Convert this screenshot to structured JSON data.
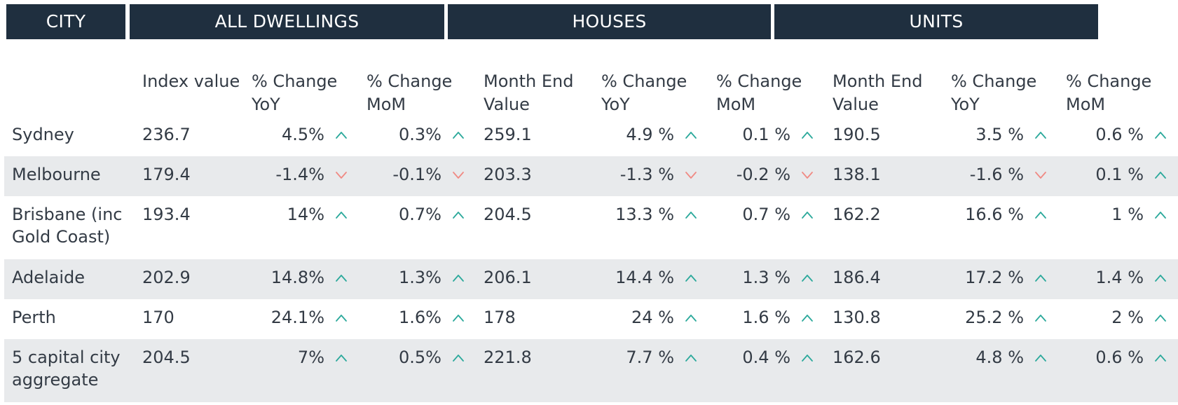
{
  "groups": {
    "city": "CITY",
    "all_dwellings": "ALL DWELLINGS",
    "houses": "HOUSES",
    "units": "UNITS"
  },
  "columns": {
    "all_dwellings": [
      "Index value",
      "% Change YoY",
      "% Change MoM"
    ],
    "houses": [
      "Month End Value",
      "% Change YoY",
      "% Change MoM"
    ],
    "units": [
      "Month End Value",
      "% Change YoY",
      "% Change MoM"
    ]
  },
  "colors": {
    "header_bg": "#1f2f3f",
    "up_arrow": "#2ba99b",
    "down_arrow": "#f08a84",
    "row_shade": "#e8eaec"
  },
  "rows": [
    {
      "city": "Sydney",
      "ad_index": "236.7",
      "ad_yoy": "4.5%",
      "ad_yoy_dir": "up",
      "ad_mom": "0.3%",
      "ad_mom_dir": "up",
      "h_value": "259.1",
      "h_yoy": "4.9 %",
      "h_yoy_dir": "up",
      "h_mom": "0.1 %",
      "h_mom_dir": "up",
      "u_value": "190.5",
      "u_yoy": "3.5 %",
      "u_yoy_dir": "up",
      "u_mom": "0.6 %",
      "u_mom_dir": "up"
    },
    {
      "city": "Melbourne",
      "ad_index": "179.4",
      "ad_yoy": "-1.4%",
      "ad_yoy_dir": "down",
      "ad_mom": "-0.1%",
      "ad_mom_dir": "down",
      "h_value": "203.3",
      "h_yoy": "-1.3 %",
      "h_yoy_dir": "down",
      "h_mom": "-0.2 %",
      "h_mom_dir": "down",
      "u_value": "138.1",
      "u_yoy": "-1.6 %",
      "u_yoy_dir": "down",
      "u_mom": "0.1 %",
      "u_mom_dir": "up"
    },
    {
      "city": "Brisbane (inc Gold Coast)",
      "ad_index": "193.4",
      "ad_yoy": "14%",
      "ad_yoy_dir": "up",
      "ad_mom": "0.7%",
      "ad_mom_dir": "up",
      "h_value": "204.5",
      "h_yoy": "13.3 %",
      "h_yoy_dir": "up",
      "h_mom": "0.7 %",
      "h_mom_dir": "up",
      "u_value": "162.2",
      "u_yoy": "16.6 %",
      "u_yoy_dir": "up",
      "u_mom": "1 %",
      "u_mom_dir": "up"
    },
    {
      "city": "Adelaide",
      "ad_index": "202.9",
      "ad_yoy": "14.8%",
      "ad_yoy_dir": "up",
      "ad_mom": "1.3%",
      "ad_mom_dir": "up",
      "h_value": "206.1",
      "h_yoy": "14.4 %",
      "h_yoy_dir": "up",
      "h_mom": "1.3 %",
      "h_mom_dir": "up",
      "u_value": "186.4",
      "u_yoy": "17.2 %",
      "u_yoy_dir": "up",
      "u_mom": "1.4 %",
      "u_mom_dir": "up"
    },
    {
      "city": "Perth",
      "ad_index": "170",
      "ad_yoy": "24.1%",
      "ad_yoy_dir": "up",
      "ad_mom": "1.6%",
      "ad_mom_dir": "up",
      "h_value": "178",
      "h_yoy": "24 %",
      "h_yoy_dir": "up",
      "h_mom": "1.6 %",
      "h_mom_dir": "up",
      "u_value": "130.8",
      "u_yoy": "25.2 %",
      "u_yoy_dir": "up",
      "u_mom": "2 %",
      "u_mom_dir": "up"
    },
    {
      "city": "5 capital city aggregate",
      "ad_index": "204.5",
      "ad_yoy": "7%",
      "ad_yoy_dir": "up",
      "ad_mom": "0.5%",
      "ad_mom_dir": "up",
      "h_value": "221.8",
      "h_yoy": "7.7 %",
      "h_yoy_dir": "up",
      "h_mom": "0.4 %",
      "h_mom_dir": "up",
      "u_value": "162.6",
      "u_yoy": "4.8 %",
      "u_yoy_dir": "up",
      "u_mom": "0.6 %",
      "u_mom_dir": "up"
    }
  ]
}
